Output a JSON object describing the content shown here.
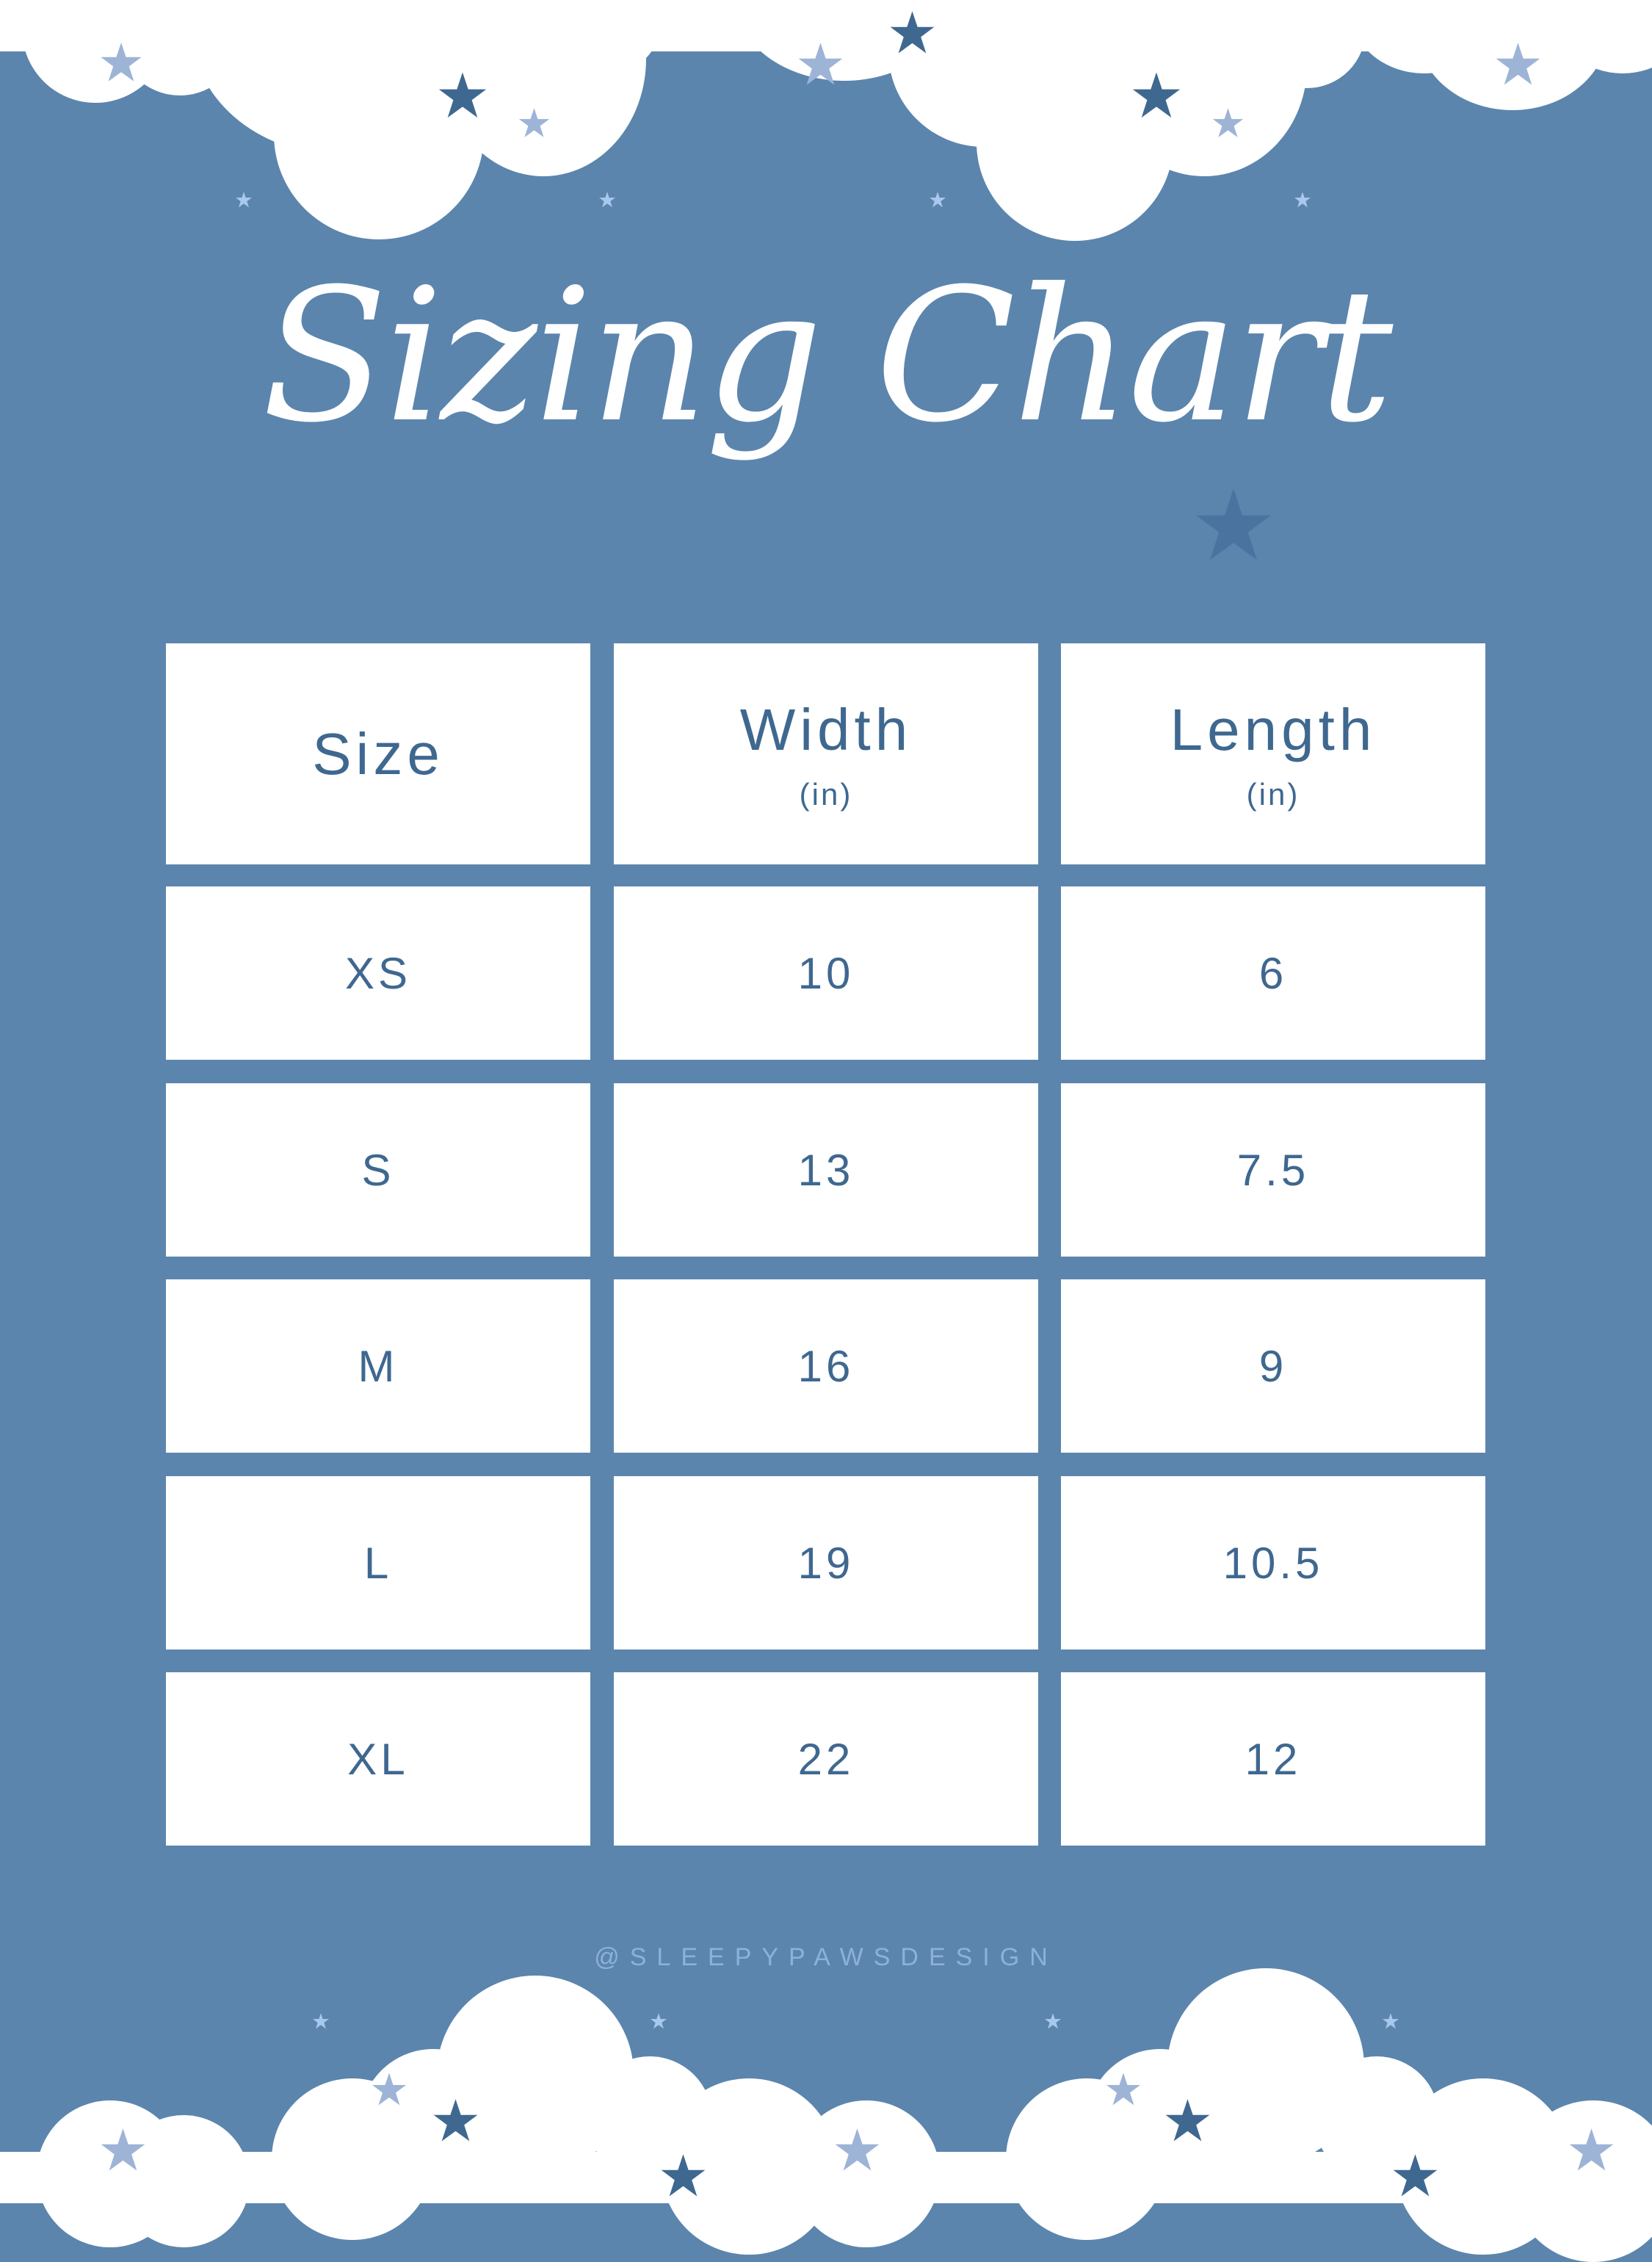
{
  "title": "Sizing Chart",
  "table": {
    "headers": [
      {
        "label": "Size",
        "unit": ""
      },
      {
        "label": "Width",
        "unit": "(in)"
      },
      {
        "label": "Length",
        "unit": "(in)"
      }
    ],
    "rows": [
      [
        "XS",
        "10",
        "6"
      ],
      [
        "S",
        "13",
        "7.5"
      ],
      [
        "M",
        "16",
        "9"
      ],
      [
        "L",
        "19",
        "10.5"
      ],
      [
        "XL",
        "22",
        "12"
      ]
    ]
  },
  "footer": "@SLEEPYPAWSDESIGN",
  "colors": {
    "background": "#5b85ad",
    "text": "#3f6890",
    "cell": "#ffffff",
    "footer": "#8cb1dc",
    "star_dark": "#3f6890",
    "star_light": "#9db4d6"
  }
}
